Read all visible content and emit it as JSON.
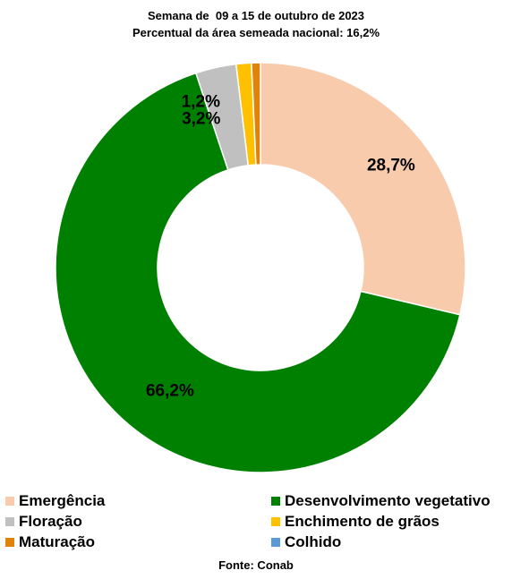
{
  "chart_data": {
    "type": "pie",
    "title": "Semana de  09 a 15 de outubro de 2023",
    "subtitle": "Percentual da área semeada nacional: 16,2%",
    "donut": true,
    "slices": [
      {
        "label": "Emergência",
        "value": 28.7,
        "display": "28,7%",
        "color": "#f8cbad"
      },
      {
        "label": "Desenvolvimento vegetativo",
        "value": 66.2,
        "display": "66,2%",
        "color": "#008000"
      },
      {
        "label": "Floração",
        "value": 3.2,
        "display": "3,2%",
        "color": "#c0c0c0"
      },
      {
        "label": "Enchimento de grãos",
        "value": 1.2,
        "display": "1,2%",
        "color": "#ffc000"
      },
      {
        "label": "Maturação",
        "value": 0.7,
        "display": "",
        "color": "#e0830a"
      },
      {
        "label": "Colhido",
        "value": 0.0,
        "display": "",
        "color": "#5b9bd5"
      }
    ],
    "legend_position": "bottom"
  },
  "source": "Fonte: Conab"
}
